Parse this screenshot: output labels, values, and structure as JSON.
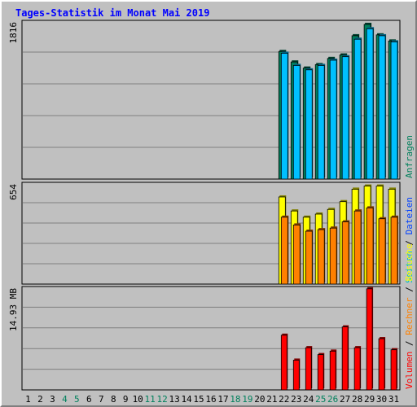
{
  "title": "Tages-Statistik im Monat Mai 2019",
  "chart_data": {
    "type": "bar",
    "title": "Tages-Statistik im Monat Mai 2019",
    "categories": [
      "1",
      "2",
      "3",
      "4",
      "5",
      "6",
      "7",
      "8",
      "9",
      "10",
      "11",
      "12",
      "13",
      "14",
      "15",
      "16",
      "17",
      "18",
      "19",
      "20",
      "21",
      "22",
      "23",
      "24",
      "25",
      "26",
      "27",
      "28",
      "29",
      "30",
      "31"
    ],
    "weekend_color": "#00805c",
    "weekend_days": [
      "4",
      "5",
      "11",
      "12",
      "18",
      "19",
      "25",
      "26"
    ],
    "panels": [
      {
        "name": "hits",
        "max_label": "1816",
        "ymax": 1816,
        "side_legend": [
          {
            "text": "Anfragen",
            "color": "#00805c"
          }
        ],
        "series": [
          {
            "name": "Anfragen",
            "color": "#00805c",
            "values": [
              0,
              0,
              0,
              0,
              0,
              0,
              0,
              0,
              0,
              0,
              0,
              0,
              0,
              0,
              0,
              0,
              0,
              0,
              0,
              0,
              0,
              1460,
              1340,
              1270,
              1310,
              1380,
              1420,
              1640,
              1770,
              1650,
              1580
            ]
          },
          {
            "name": "Dateien",
            "color": "#00c0ff",
            "values": [
              0,
              0,
              0,
              0,
              0,
              0,
              0,
              0,
              0,
              0,
              0,
              0,
              0,
              0,
              0,
              0,
              0,
              0,
              0,
              0,
              0,
              1440,
              1300,
              1250,
              1300,
              1360,
              1400,
              1600,
              1720,
              1640,
              1570
            ]
          }
        ]
      },
      {
        "name": "visits",
        "max_label": "654",
        "ymax": 654,
        "side_legend": [
          {
            "text": "Seiten",
            "color": "#00c0c0"
          },
          {
            "text": "Dateien",
            "color": "#0040ff"
          }
        ],
        "series": [
          {
            "name": "Seiten",
            "color": "#ffff00",
            "values": [
              0,
              0,
              0,
              0,
              0,
              0,
              0,
              0,
              0,
              0,
              0,
              0,
              0,
              0,
              0,
              0,
              0,
              0,
              0,
              0,
              0,
              560,
              470,
              430,
              450,
              480,
              530,
              610,
              630,
              630,
              610
            ]
          },
          {
            "name": "Besuche",
            "color": "#ff8000",
            "values": [
              0,
              0,
              0,
              0,
              0,
              0,
              0,
              0,
              0,
              0,
              0,
              0,
              0,
              0,
              0,
              0,
              0,
              0,
              0,
              0,
              0,
              430,
              380,
              340,
              350,
              360,
              400,
              470,
              490,
              420,
              430
            ]
          }
        ]
      },
      {
        "name": "volume",
        "max_label": "14.93 MB",
        "ymax": 14.93,
        "side_legend": [
          {
            "text": "Volumen",
            "color": "#ff0000"
          },
          {
            "text": "Rechner",
            "color": "#ff8000"
          },
          {
            "text": "Besuche",
            "color": "#ffff00"
          }
        ],
        "series": [
          {
            "name": "Volumen",
            "color": "#ff0000",
            "values": [
              0,
              0,
              0,
              0,
              0,
              0,
              0,
              0,
              0,
              0,
              0,
              0,
              0,
              0,
              0,
              0,
              0,
              0,
              0,
              0,
              0,
              7.9,
              4.3,
              6.1,
              5.1,
              5.6,
              9.1,
              6.1,
              14.6,
              7.4,
              5.8
            ]
          }
        ]
      }
    ]
  }
}
